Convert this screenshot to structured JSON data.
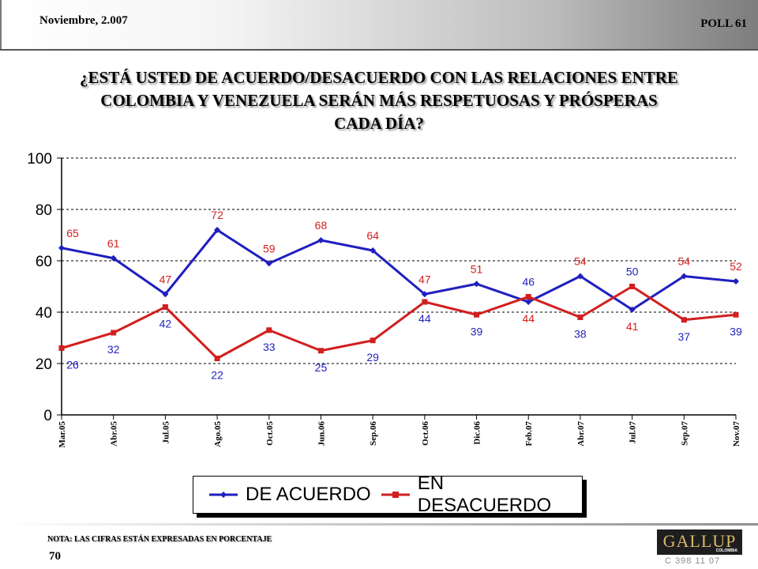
{
  "header": {
    "date": "Noviembre, 2.007",
    "poll": "POLL 61"
  },
  "title_lines": [
    "¿ESTÁ USTED DE ACUERDO/DESACUERDO CON LAS RELACIONES ENTRE",
    "COLOMBIA Y VENEZUELA SERÁN MÁS RESPETUOSAS Y PRÓSPERAS",
    "CADA DÍA?"
  ],
  "footer": {
    "note": "NOTA: LAS CIFRAS ESTÁN EXPRESADAS EN PORCENTAJE",
    "page_number": "70",
    "logo_word": "GALLUP",
    "logo_sub": "COLOMBIA",
    "code": "C 398 11 07"
  },
  "chart_data": {
    "type": "line",
    "categories": [
      "Mar.05",
      "Abr.05",
      "Jul.05",
      "Ago.05",
      "Oct.05",
      "Jun.06",
      "Sep.06",
      "Oct.06",
      "Dic.06",
      "Feb.07",
      "Abr.07",
      "Jul.07",
      "Sep.07",
      "Nov.07"
    ],
    "series": [
      {
        "name": "DE ACUERDO",
        "color": "#1f1fbf",
        "marker": "diamond",
        "values": [
          65,
          61,
          47,
          72,
          59,
          68,
          64,
          47,
          51,
          44,
          54,
          41,
          54,
          52
        ]
      },
      {
        "name": "EN DESACUERDO",
        "color": "#d21f1f",
        "marker": "square",
        "values": [
          26,
          32,
          42,
          22,
          33,
          25,
          29,
          44,
          39,
          46,
          38,
          50,
          37,
          39
        ]
      }
    ],
    "data_labels": {
      "above": [
        65,
        61,
        47,
        72,
        59,
        68,
        64,
        47,
        51,
        46,
        54,
        50,
        54,
        52
      ],
      "above_colors": [
        "red",
        "red",
        "red",
        "red",
        "red",
        "red",
        "red",
        "red",
        "red",
        "blue",
        "red",
        "blue",
        "red",
        "red"
      ],
      "below": [
        26,
        32,
        42,
        22,
        33,
        25,
        29,
        44,
        39,
        44,
        38,
        41,
        37,
        39
      ],
      "below_colors": [
        "blue",
        "blue",
        "blue",
        "blue",
        "blue",
        "blue",
        "blue",
        "blue",
        "blue",
        "red",
        "blue",
        "red",
        "blue",
        "blue"
      ]
    },
    "ylim": [
      0,
      100
    ],
    "yticks": [
      0,
      20,
      40,
      60,
      80,
      100
    ],
    "grid": "horizontal dashed",
    "legend_position": "bottom-center",
    "xlabel": "",
    "ylabel": ""
  }
}
